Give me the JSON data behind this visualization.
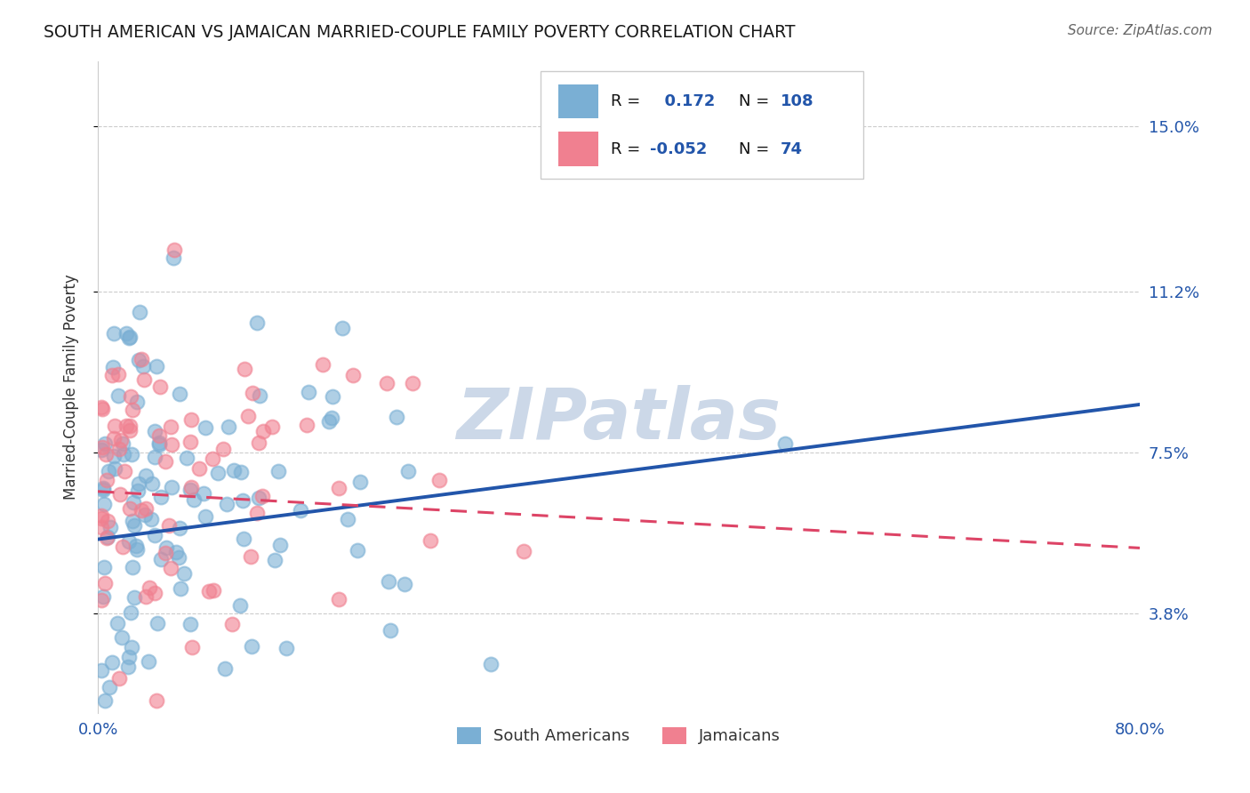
{
  "title": "SOUTH AMERICAN VS JAMAICAN MARRIED-COUPLE FAMILY POVERTY CORRELATION CHART",
  "source": "Source: ZipAtlas.com",
  "ylabel": "Married-Couple Family Poverty",
  "yticks": [
    3.8,
    7.5,
    11.2,
    15.0
  ],
  "ytick_labels": [
    "3.8%",
    "7.5%",
    "11.2%",
    "15.0%"
  ],
  "xmin": 0.0,
  "xmax": 80.0,
  "ymin": 1.5,
  "ymax": 16.5,
  "r_south_american": 0.172,
  "n_south_american": 108,
  "r_jamaican": -0.052,
  "n_jamaican": 74,
  "south_american_color": "#7aafd4",
  "jamaican_color": "#f08090",
  "trend_south_american_color": "#2255aa",
  "trend_jamaican_color": "#dd4466",
  "watermark_color": "#ccd8e8",
  "background_color": "#ffffff",
  "south_americans_label": "South Americans",
  "jamaicans_label": "Jamaicans",
  "legend_text_color": "#2255aa",
  "sa_trend_x0": 0.0,
  "sa_trend_y0": 5.5,
  "sa_trend_x1": 80.0,
  "sa_trend_y1": 8.6,
  "ja_trend_x0": 0.0,
  "ja_trend_y0": 6.6,
  "ja_trend_x1": 80.0,
  "ja_trend_y1": 5.3
}
